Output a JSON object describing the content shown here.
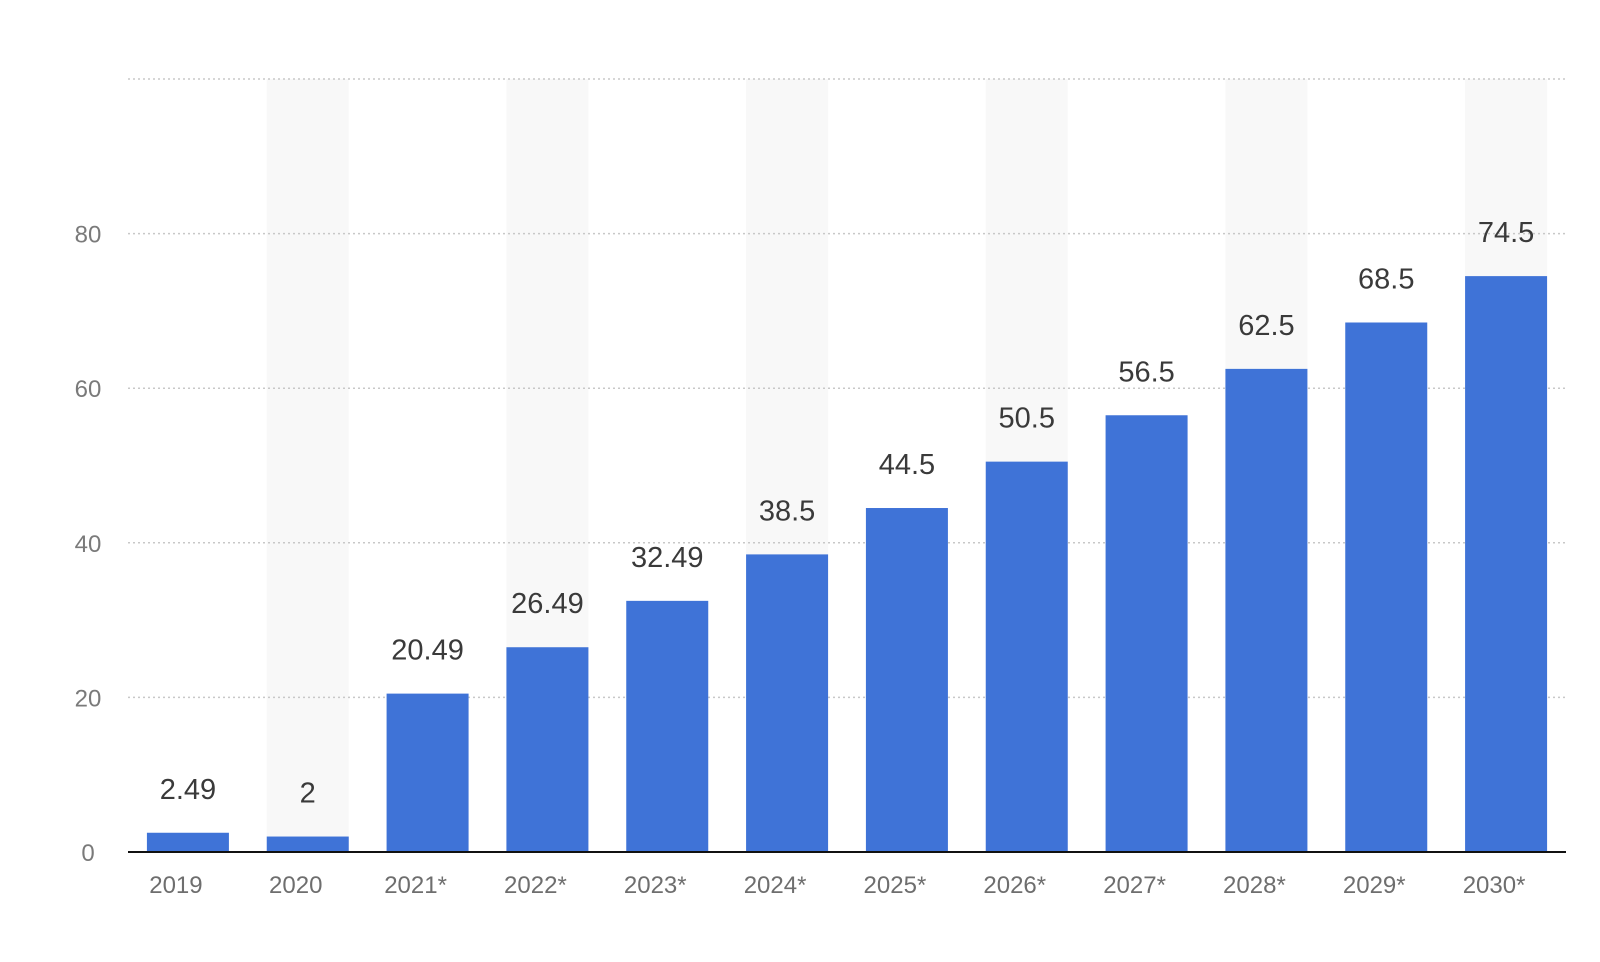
{
  "chart_data": {
    "type": "bar",
    "title": "",
    "xlabel": "",
    "ylabel": "",
    "categories": [
      "2019",
      "2020",
      "2021*",
      "2022*",
      "2023*",
      "2024*",
      "2025*",
      "2026*",
      "2027*",
      "2028*",
      "2029*",
      "2030*"
    ],
    "values": [
      2.49,
      2,
      20.49,
      26.49,
      32.49,
      38.5,
      44.5,
      50.5,
      56.5,
      62.5,
      68.5,
      74.5
    ],
    "data_labels": [
      "2.49",
      "2",
      "20.49",
      "26.49",
      "32.49",
      "38.5",
      "44.5",
      "50.5",
      "56.5",
      "62.5",
      "68.5",
      "74.5"
    ],
    "ylim": [
      0,
      100
    ],
    "yticks": [
      0,
      20,
      40,
      60,
      80
    ],
    "ytick_labels": [
      "0",
      "20",
      "40",
      "60",
      "80"
    ],
    "grid": true,
    "alternating_column_bands": true,
    "colors": {
      "bar": "#3f73d7",
      "band": "#f8f8f8",
      "grid": "#c8c8c8",
      "axis": "#111111"
    }
  }
}
